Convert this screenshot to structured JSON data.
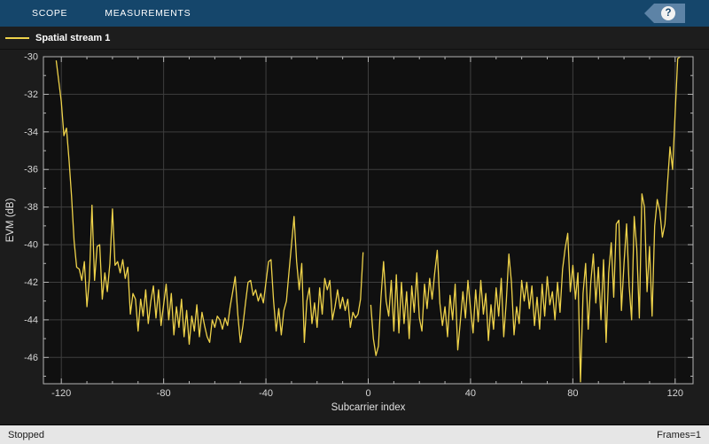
{
  "toolbar": {
    "tabs": [
      {
        "label": "SCOPE"
      },
      {
        "label": "MEASUREMENTS"
      }
    ],
    "help_label": "?"
  },
  "legend": {
    "items": [
      {
        "label": "Spatial stream 1",
        "color": "#eed24a"
      }
    ]
  },
  "status_bar": {
    "left": "Stopped",
    "right": "Frames=1"
  },
  "colors": {
    "toolbar_bg": "#15466b",
    "help_tag_bg": "#5d83a6",
    "figure_bg": "#1c1c1c",
    "plot_bg": "#101010",
    "grid": "#3e3e3e",
    "frame": "#b4b4b4",
    "tick_label": "#d6d6d6",
    "trace": "#eed24a",
    "status_bg": "#e6e6e6"
  },
  "chart_data": {
    "type": "line",
    "title": "",
    "xlabel": "Subcarrier index",
    "ylabel": "EVM (dB)",
    "xlim": [
      -127,
      127
    ],
    "ylim": [
      -47.4,
      -30
    ],
    "xticks": [
      -120,
      -80,
      -40,
      0,
      40,
      80,
      120
    ],
    "yticks": [
      -30,
      -32,
      -34,
      -36,
      -38,
      -40,
      -42,
      -44,
      -46
    ],
    "x_minor_step": 10,
    "y_minor_step": 1,
    "grid": true,
    "legend_position": "top-strip",
    "series": [
      {
        "name": "Spatial stream 1",
        "color": "#eed24a",
        "x_start": -122,
        "x_step": 1,
        "values": [
          -30.2,
          -31.3,
          -32.4,
          -34.2,
          -33.8,
          -35.5,
          -37.4,
          -39.8,
          -41.2,
          -41.3,
          -41.9,
          -40.9,
          -43.3,
          -41.8,
          -37.9,
          -41.9,
          -40.1,
          -40.0,
          -42.9,
          -41.5,
          -42.5,
          -41.0,
          -38.1,
          -41.1,
          -40.9,
          -41.5,
          -40.8,
          -41.8,
          -41.2,
          -43.7,
          -42.6,
          -42.9,
          -44.6,
          -42.9,
          -43.8,
          -42.4,
          -44.2,
          -43.0,
          -42.2,
          -43.9,
          -42.4,
          -44.3,
          -43.2,
          -42.1,
          -44.0,
          -42.6,
          -44.8,
          -43.3,
          -44.4,
          -42.9,
          -44.9,
          -43.5,
          -45.3,
          -43.8,
          -44.6,
          -43.2,
          -44.9,
          -43.6,
          -44.3,
          -44.9,
          -45.2,
          -44.0,
          -44.4,
          -43.8,
          -44.0,
          -44.5,
          -43.9,
          -44.3,
          -43.3,
          -42.5,
          -41.7,
          -43.7,
          -45.2,
          -44.3,
          -43.1,
          -42.0,
          -41.9,
          -42.7,
          -42.4,
          -43.0,
          -42.6,
          -43.1,
          -42.0,
          -40.9,
          -40.8,
          -43.0,
          -44.6,
          -43.4,
          -44.8,
          -43.5,
          -43.0,
          -41.5,
          -40.0,
          -38.5,
          -40.9,
          -42.4,
          -41.0,
          -45.2,
          -43.0,
          -42.3,
          -44.2,
          -43.1,
          -44.4,
          -42.3,
          -43.7,
          -41.8,
          -42.4,
          -41.9,
          -44.0,
          -43.3,
          -42.4,
          -43.4,
          -42.8,
          -43.5,
          -42.9,
          -44.4,
          -43.6,
          -43.9,
          -43.7,
          -42.9,
          -40.4,
          null,
          null,
          -43.2,
          -45.0,
          -45.9,
          -45.4,
          -42.8,
          -40.9,
          -43.0,
          -43.8,
          -41.9,
          -44.6,
          -41.6,
          -44.7,
          -42.0,
          -44.2,
          -42.5,
          -45.0,
          -42.2,
          -43.6,
          -41.5,
          -43.9,
          -44.6,
          -42.1,
          -43.4,
          -41.8,
          -42.9,
          -41.5,
          -40.3,
          -43.1,
          -44.3,
          -43.3,
          -44.9,
          -42.7,
          -44.0,
          -42.1,
          -45.6,
          -44.1,
          -42.5,
          -43.9,
          -41.9,
          -43.4,
          -44.7,
          -42.4,
          -44.1,
          -41.9,
          -43.7,
          -42.6,
          -45.1,
          -43.2,
          -44.5,
          -42.3,
          -43.8,
          -41.8,
          -44.9,
          -43.0,
          -40.5,
          -42.0,
          -44.8,
          -43.3,
          -44.2,
          -41.9,
          -43.0,
          -42.0,
          -43.4,
          -42.2,
          -44.3,
          -42.8,
          -44.5,
          -42.1,
          -43.8,
          -41.7,
          -43.2,
          -42.5,
          -44.0,
          -42.0,
          -43.6,
          -41.3,
          -40.2,
          -39.4,
          -42.5,
          -41.1,
          -42.9,
          -41.5,
          -47.3,
          -42.6,
          -41.0,
          -44.5,
          -42.0,
          -40.5,
          -43.1,
          -41.2,
          -44.0,
          -40.8,
          -45.2,
          -41.5,
          -39.9,
          -42.8,
          -38.9,
          -38.7,
          -43.5,
          -41.0,
          -38.9,
          -42.2,
          -44.0,
          -38.5,
          -40.2,
          -43.9,
          -37.3,
          -38.0,
          -42.5,
          -40.1,
          -43.8,
          -39.0,
          -37.6,
          -38.2,
          -39.6,
          -38.9,
          -36.8,
          -34.8,
          -36.0,
          -33.0,
          -30.1,
          -30.0
        ]
      }
    ]
  }
}
